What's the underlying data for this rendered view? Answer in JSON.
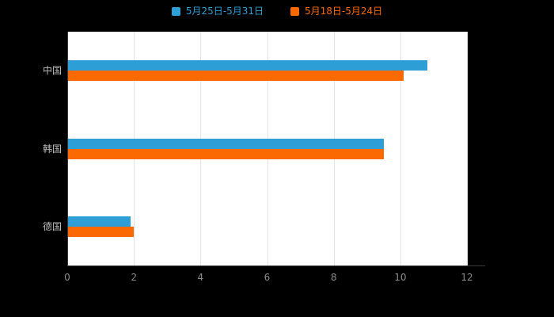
{
  "colors": {
    "background": "#000000",
    "plot_background": "#ffffff",
    "gridline": "#e3e3e3",
    "axis_line": "#3a3a3a",
    "category_label": "#bdbdbd",
    "tick_label": "#8c8c8c",
    "series_blue": "#2e9fd6",
    "series_orange": "#fb6a02"
  },
  "chart_data": {
    "type": "bar",
    "orientation": "horizontal",
    "title": "",
    "xlabel": "",
    "ylabel": "",
    "categories": [
      "中国",
      "韩国",
      "德国"
    ],
    "series": [
      {
        "name": "5月25日-5月31日",
        "color": "#2e9fd6",
        "values": [
          10.8,
          9.5,
          1.9
        ]
      },
      {
        "name": "5月18日-5月24日",
        "color": "#fb6a02",
        "values": [
          10.1,
          9.5,
          2.0
        ]
      }
    ],
    "xlim": [
      0,
      12
    ],
    "xticks": [
      0,
      2,
      4,
      6,
      8,
      10,
      12
    ],
    "grid": true,
    "legend_position": "top"
  }
}
